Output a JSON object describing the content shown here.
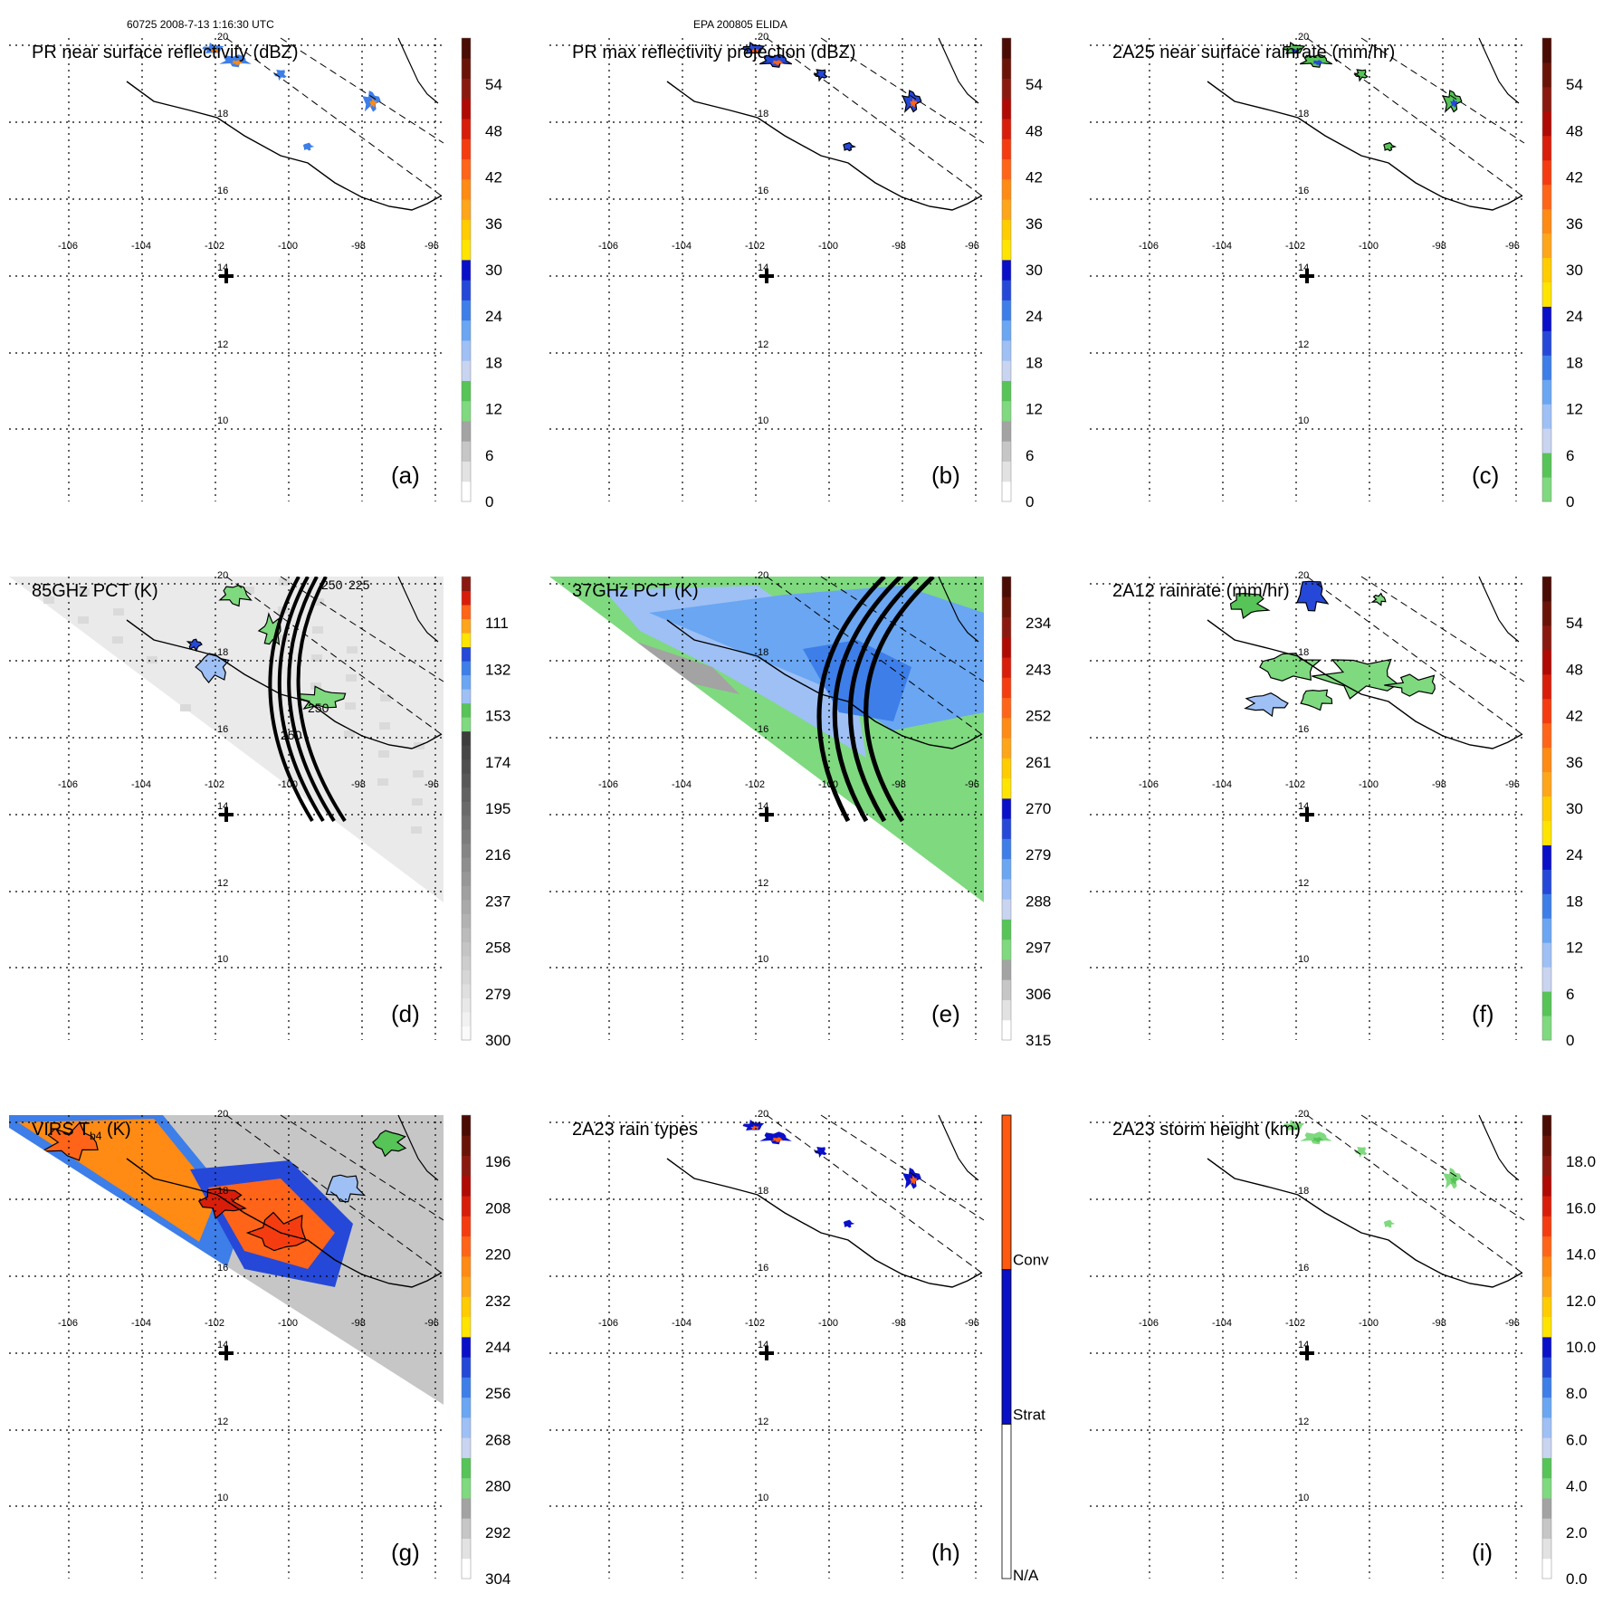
{
  "header": {
    "orbit_time": "60725 2008-7-13 1:16:30 UTC",
    "storm": "EPA 200805 ELIDA"
  },
  "map": {
    "lon_ticks": [
      "-106",
      "-104",
      "-102",
      "-100",
      "-98",
      "-96"
    ],
    "lat_ticks": [
      "20",
      "18",
      "16",
      "14",
      "12",
      "10"
    ],
    "center_marker": "plus-marker"
  },
  "colors": {
    "reflectivity_scale": [
      "#ffffff",
      "#e2e2e2",
      "#c6c6c6",
      "#a3a3a3",
      "#7fd97f",
      "#56c456",
      "#c8d4f0",
      "#9ec0f5",
      "#6aa6f2",
      "#3d7ee8",
      "#2548d8",
      "#0a10c8",
      "#ffe400",
      "#ffcc00",
      "#ffa51a",
      "#ff8a14",
      "#ff6418",
      "#f43c10",
      "#d81e0a",
      "#b00a05",
      "#8a1a10",
      "#6a1408",
      "#4a0c04"
    ],
    "rainrate_scale": [
      "#7fd97f",
      "#56c456",
      "#c8d4f0",
      "#9ec0f5",
      "#6aa6f2",
      "#3d7ee8",
      "#2548d8",
      "#0a10c8",
      "#ffe400",
      "#ffcc00",
      "#ffa51a",
      "#ff8a14",
      "#ff6418",
      "#f43c10",
      "#d81e0a",
      "#b00a05",
      "#8a1a10",
      "#6a1408",
      "#4a0c04"
    ],
    "raintype_scale": [
      "#ffffff",
      "#0a10c8",
      "#ff5a10"
    ]
  },
  "chart_data": [
    {
      "panel": "(a)",
      "type": "heatmap",
      "title": "PR near surface reflectivity (dBZ)",
      "colorbar_ticks": [
        "0",
        "6",
        "12",
        "18",
        "24",
        "30",
        "36",
        "42",
        "48",
        "54"
      ],
      "colorbar_range": [
        0,
        60
      ]
    },
    {
      "panel": "(b)",
      "type": "heatmap",
      "title": "PR max reflectivity projection (dBZ)",
      "colorbar_ticks": [
        "0",
        "6",
        "12",
        "18",
        "24",
        "30",
        "36",
        "42",
        "48",
        "54"
      ],
      "colorbar_range": [
        0,
        60
      ]
    },
    {
      "panel": "(c)",
      "type": "heatmap",
      "title": "2A25 near surface rainrate (mm/hr)",
      "colorbar_ticks": [
        "0",
        "6",
        "12",
        "18",
        "24",
        "30",
        "36",
        "42",
        "48",
        "54"
      ],
      "colorbar_range": [
        0,
        60
      ]
    },
    {
      "panel": "(d)",
      "type": "heatmap",
      "title": "85GHz PCT (K)",
      "colorbar_ticks": [
        "300",
        "279",
        "258",
        "237",
        "216",
        "195",
        "174",
        "153",
        "132",
        "111"
      ],
      "colorbar_range": [
        300,
        90
      ],
      "contour_labels": [
        "250",
        "225",
        "250",
        "250"
      ]
    },
    {
      "panel": "(e)",
      "type": "heatmap",
      "title": "37GHz PCT (K)",
      "colorbar_ticks": [
        "315",
        "306",
        "297",
        "288",
        "279",
        "270",
        "261",
        "252",
        "243",
        "234"
      ],
      "colorbar_range": [
        315,
        225
      ]
    },
    {
      "panel": "(f)",
      "type": "heatmap",
      "title": "2A12 rainrate (mm/hr)",
      "colorbar_ticks": [
        "0",
        "6",
        "12",
        "18",
        "24",
        "30",
        "36",
        "42",
        "48",
        "54"
      ],
      "colorbar_range": [
        0,
        60
      ]
    },
    {
      "panel": "(g)",
      "type": "heatmap",
      "title": "VIRS T",
      "title_sub": "b4",
      "title_suffix": " (K)",
      "colorbar_ticks": [
        "304",
        "292",
        "280",
        "268",
        "256",
        "244",
        "232",
        "220",
        "208",
        "196"
      ],
      "colorbar_range": [
        304,
        184
      ]
    },
    {
      "panel": "(h)",
      "type": "heatmap",
      "title": "2A23 rain types",
      "colorbar_ticks": [
        "N/A",
        "Strat",
        "Conv"
      ],
      "categorical": true
    },
    {
      "panel": "(i)",
      "type": "heatmap",
      "title": "2A23 storm height (km)",
      "colorbar_ticks": [
        "0.0",
        "2.0",
        "4.0",
        "6.0",
        "8.0",
        "10.0",
        "12.0",
        "14.0",
        "16.0",
        "18.0"
      ],
      "colorbar_range": [
        0,
        20
      ]
    }
  ]
}
